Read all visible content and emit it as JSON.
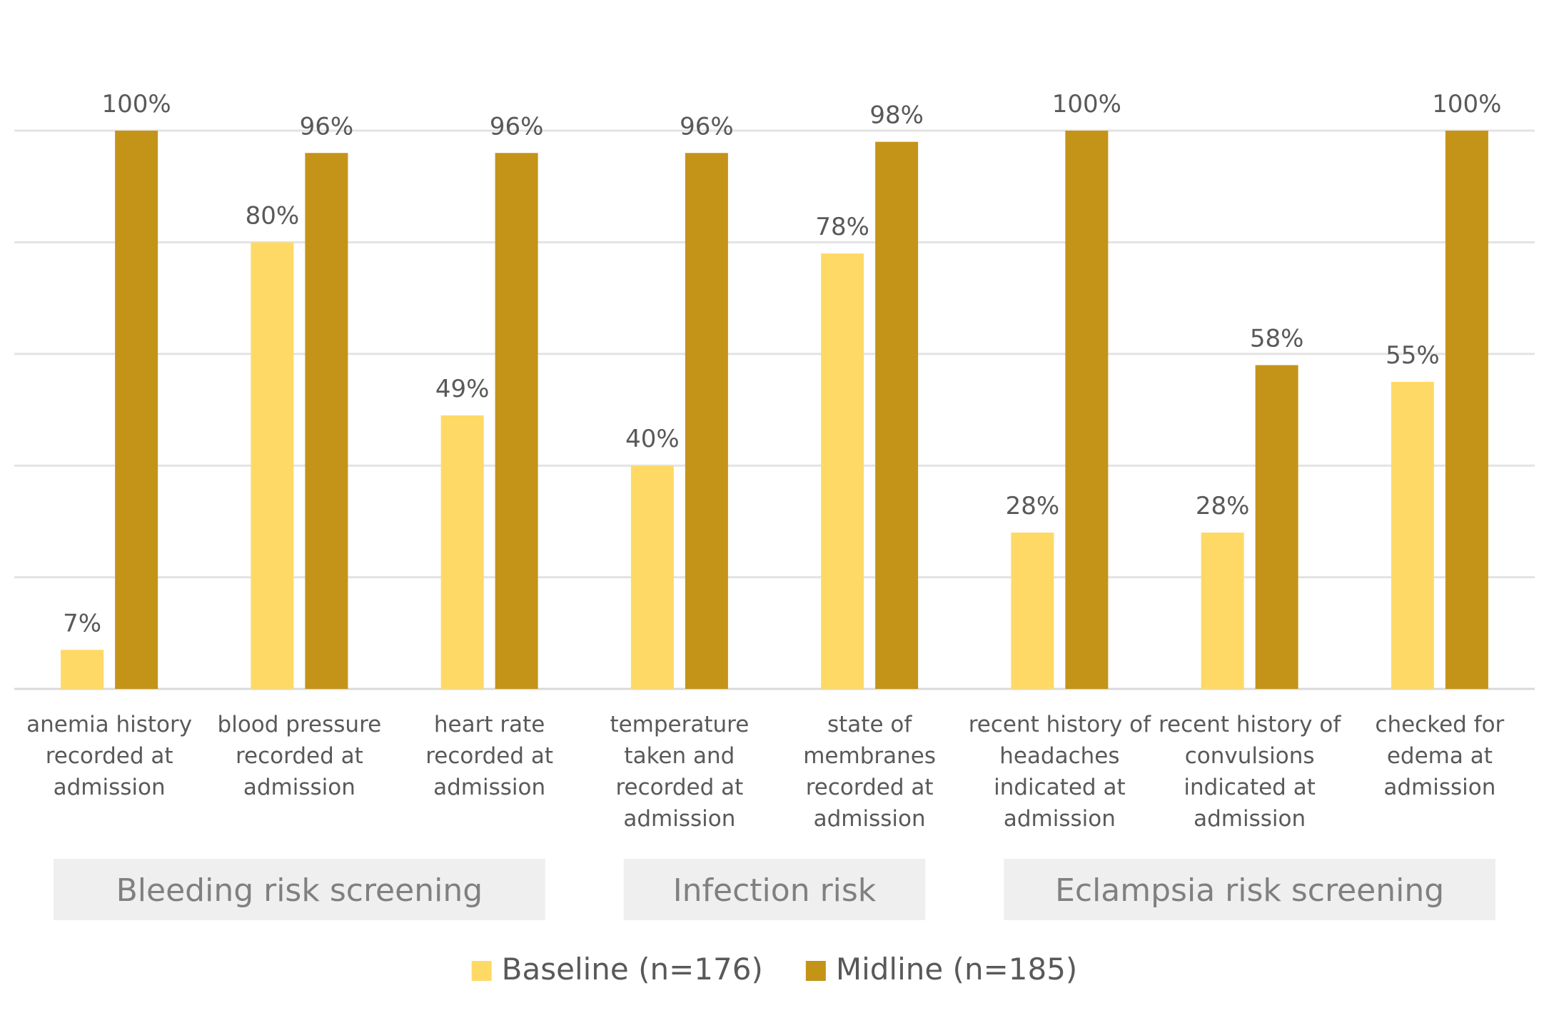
{
  "chart_data": {
    "type": "bar",
    "categories": [
      [
        "anemia history",
        "recorded at",
        "admission"
      ],
      [
        "blood pressure",
        "recorded at",
        "admission"
      ],
      [
        "heart rate",
        "recorded at",
        "admission"
      ],
      [
        "temperature",
        "taken and",
        "recorded at",
        "admission"
      ],
      [
        "state of",
        "membranes",
        "recorded at",
        "admission"
      ],
      [
        "recent history of",
        "headaches",
        "indicated at",
        "admission"
      ],
      [
        "recent history of",
        "convulsions",
        "indicated at",
        "admission"
      ],
      [
        "checked for",
        "edema at",
        "admission"
      ]
    ],
    "series": [
      {
        "name": "Baseline (n=176)",
        "color": "#FFD966",
        "values": [
          7,
          80,
          49,
          40,
          78,
          28,
          28,
          55
        ],
        "labels": [
          "7%",
          "80%",
          "49%",
          "40%",
          "78%",
          "28%",
          "28%",
          "55%"
        ]
      },
      {
        "name": "Midline (n=185)",
        "color": "#C49418",
        "values": [
          100,
          96,
          96,
          96,
          98,
          100,
          58,
          100
        ],
        "labels": [
          "100%",
          "96%",
          "96%",
          "96%",
          "98%",
          "100%",
          "58%",
          "100%"
        ]
      }
    ],
    "ylim": [
      0,
      100
    ],
    "grid": true,
    "groups": [
      {
        "label": "Bleeding risk screening",
        "categories": [
          0,
          2
        ]
      },
      {
        "label": "Infection risk",
        "categories": [
          3,
          4
        ]
      },
      {
        "label": "Eclampsia risk screening",
        "categories": [
          5,
          7
        ]
      }
    ],
    "legend_position": "bottom",
    "title": "",
    "xlabel": "",
    "ylabel": ""
  }
}
